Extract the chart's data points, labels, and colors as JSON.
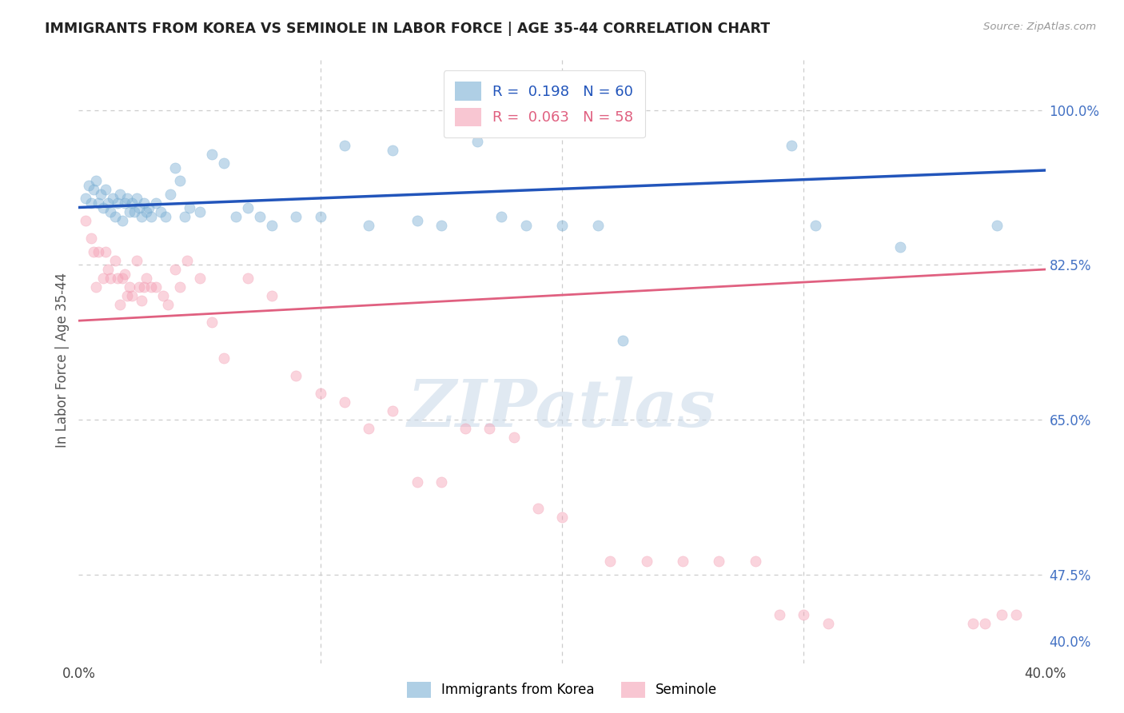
{
  "title": "IMMIGRANTS FROM KOREA VS SEMINOLE IN LABOR FORCE | AGE 35-44 CORRELATION CHART",
  "source": "Source: ZipAtlas.com",
  "ylabel": "In Labor Force | Age 35-44",
  "xmin": 0.0,
  "xmax": 0.4,
  "ymin": 0.375,
  "ymax": 1.06,
  "right_yticks": [
    0.4,
    0.475,
    0.65,
    0.825,
    1.0
  ],
  "right_ylabels": [
    "40.0%",
    "47.5%",
    "65.0%",
    "82.5%",
    "100.0%"
  ],
  "grid_yticks": [
    0.475,
    0.65,
    0.825,
    1.0
  ],
  "xticks": [
    0.0,
    0.1,
    0.2,
    0.3,
    0.4
  ],
  "legend_text1": "R =  0.198   N = 60",
  "legend_text2": "R =  0.063   N = 58",
  "watermark": "ZIPatlas",
  "korea_scatter_x": [
    0.003,
    0.004,
    0.005,
    0.006,
    0.007,
    0.008,
    0.009,
    0.01,
    0.011,
    0.012,
    0.013,
    0.014,
    0.015,
    0.016,
    0.017,
    0.018,
    0.019,
    0.02,
    0.021,
    0.022,
    0.023,
    0.024,
    0.025,
    0.026,
    0.027,
    0.028,
    0.029,
    0.03,
    0.032,
    0.034,
    0.036,
    0.038,
    0.04,
    0.042,
    0.044,
    0.046,
    0.05,
    0.055,
    0.06,
    0.065,
    0.07,
    0.075,
    0.08,
    0.09,
    0.1,
    0.11,
    0.12,
    0.13,
    0.14,
    0.15,
    0.165,
    0.175,
    0.185,
    0.2,
    0.215,
    0.225,
    0.295,
    0.305,
    0.34,
    0.38
  ],
  "korea_scatter_y": [
    0.9,
    0.915,
    0.895,
    0.91,
    0.92,
    0.895,
    0.905,
    0.89,
    0.91,
    0.895,
    0.885,
    0.9,
    0.88,
    0.895,
    0.905,
    0.875,
    0.895,
    0.9,
    0.885,
    0.895,
    0.885,
    0.9,
    0.89,
    0.88,
    0.895,
    0.885,
    0.89,
    0.88,
    0.895,
    0.885,
    0.88,
    0.905,
    0.935,
    0.92,
    0.88,
    0.89,
    0.885,
    0.95,
    0.94,
    0.88,
    0.89,
    0.88,
    0.87,
    0.88,
    0.88,
    0.96,
    0.87,
    0.955,
    0.875,
    0.87,
    0.965,
    0.88,
    0.87,
    0.87,
    0.87,
    0.74,
    0.96,
    0.87,
    0.845,
    0.87
  ],
  "seminole_scatter_x": [
    0.003,
    0.005,
    0.006,
    0.007,
    0.008,
    0.01,
    0.011,
    0.012,
    0.013,
    0.015,
    0.016,
    0.017,
    0.018,
    0.019,
    0.02,
    0.021,
    0.022,
    0.024,
    0.025,
    0.026,
    0.027,
    0.028,
    0.03,
    0.032,
    0.035,
    0.037,
    0.04,
    0.042,
    0.045,
    0.05,
    0.055,
    0.06,
    0.07,
    0.08,
    0.09,
    0.1,
    0.11,
    0.12,
    0.13,
    0.14,
    0.15,
    0.16,
    0.17,
    0.18,
    0.19,
    0.2,
    0.22,
    0.235,
    0.25,
    0.265,
    0.28,
    0.29,
    0.3,
    0.31,
    0.37,
    0.375,
    0.382,
    0.388
  ],
  "seminole_scatter_y": [
    0.875,
    0.855,
    0.84,
    0.8,
    0.84,
    0.81,
    0.84,
    0.82,
    0.81,
    0.83,
    0.81,
    0.78,
    0.81,
    0.815,
    0.79,
    0.8,
    0.79,
    0.83,
    0.8,
    0.785,
    0.8,
    0.81,
    0.8,
    0.8,
    0.79,
    0.78,
    0.82,
    0.8,
    0.83,
    0.81,
    0.76,
    0.72,
    0.81,
    0.79,
    0.7,
    0.68,
    0.67,
    0.64,
    0.66,
    0.58,
    0.58,
    0.64,
    0.64,
    0.63,
    0.55,
    0.54,
    0.49,
    0.49,
    0.49,
    0.49,
    0.49,
    0.43,
    0.43,
    0.42,
    0.42,
    0.42,
    0.43,
    0.43
  ],
  "korea_line_x": [
    0.0,
    0.4
  ],
  "korea_line_y": [
    0.89,
    0.932
  ],
  "seminole_line_x": [
    0.0,
    0.4
  ],
  "seminole_line_y": [
    0.762,
    0.82
  ],
  "scatter_size": 90,
  "scatter_alpha": 0.45,
  "korea_color": "#7BAFD4",
  "seminole_color": "#F4A0B5",
  "korea_line_color": "#2255BB",
  "seminole_line_color": "#E06080",
  "background_color": "#FFFFFF",
  "grid_color": "#CCCCCC",
  "title_color": "#222222",
  "ylabel_color": "#555555",
  "right_tick_color": "#4472C4",
  "watermark_color": "#C8D8E8",
  "fig_width": 14.06,
  "fig_height": 8.92
}
